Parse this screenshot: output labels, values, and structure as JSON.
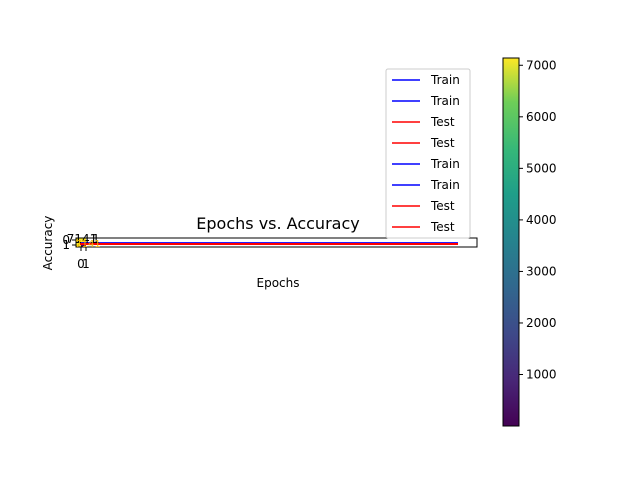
{
  "chart_data": {
    "type": "heatmap",
    "title": "Epochs vs. Accuracy",
    "xlabel": "Epochs",
    "ylabel": "Accuracy",
    "x_ticks": [
      "0",
      "1"
    ],
    "y_ticks": [
      "0",
      "1"
    ],
    "cell_annotations": [
      "7141",
      "1"
    ],
    "series": [
      {
        "name": "Train",
        "color": "#0000ff"
      },
      {
        "name": "Train",
        "color": "#0000ff"
      },
      {
        "name": "Test",
        "color": "#ff0000"
      },
      {
        "name": "Test",
        "color": "#ff0000"
      },
      {
        "name": "Train",
        "color": "#0000ff"
      },
      {
        "name": "Train",
        "color": "#0000ff"
      },
      {
        "name": "Test",
        "color": "#ff0000"
      },
      {
        "name": "Test",
        "color": "#ff0000"
      }
    ],
    "legend_position": "top-right",
    "colorbar": {
      "colormap": "viridis",
      "range": [
        1,
        7141
      ],
      "ticks": [
        "1000",
        "2000",
        "3000",
        "4000",
        "5000",
        "6000",
        "7000"
      ]
    },
    "grid": false
  }
}
